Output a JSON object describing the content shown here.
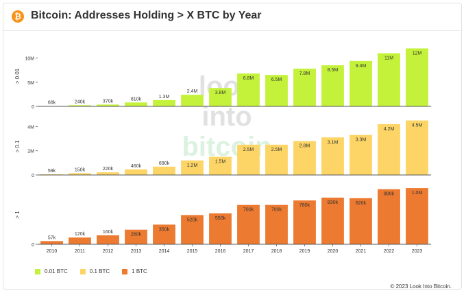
{
  "header": {
    "title": "Bitcoin: Addresses Holding > X BTC by Year",
    "logo_icon": "bitcoin-logo-icon",
    "logo_glyph": "₿"
  },
  "watermark": [
    "look",
    "into",
    "bitcoin"
  ],
  "copyright": "© 2023 Look Into Bitcoin.",
  "colors": {
    "series_001": "#c4f23a",
    "series_01": "#fdd566",
    "series_1": "#ec7a30",
    "grid": "#ececec",
    "axis": "#555555"
  },
  "chart_data": {
    "type": "bar",
    "title": "Bitcoin: Addresses Holding > X BTC by Year",
    "categories": [
      "2010",
      "2011",
      "2012",
      "2013",
      "2014",
      "2015",
      "2016",
      "2017",
      "2018",
      "2019",
      "2020",
      "2021",
      "2022",
      "2023"
    ],
    "panels": [
      {
        "ylabel": "> 0.01",
        "ylim": [
          0,
          12500000
        ],
        "yticks": [
          0,
          5000000,
          10000000
        ],
        "ytick_labels": [
          "0",
          "5M",
          "10M"
        ],
        "series": [
          {
            "name": "0.01 BTC",
            "values": [
              66000,
              240000,
              370000,
              810000,
              1300000,
              2400000,
              3800000,
              6800000,
              6500000,
              7800000,
              8500000,
              9400000,
              11000000,
              12000000
            ],
            "labels": [
              "66k",
              "240k",
              "370k",
              "810k",
              "1.3M",
              "2.4M",
              "3.8M",
              "6.8M",
              "6.5M",
              "7.8M",
              "8.5M",
              "9.4M",
              "11M",
              "12M"
            ]
          }
        ]
      },
      {
        "ylabel": "> 0.1",
        "ylim": [
          0,
          4700000
        ],
        "yticks": [
          0,
          2000000,
          4000000
        ],
        "ytick_labels": [
          "0",
          "2M",
          "4M"
        ],
        "series": [
          {
            "name": "0.1 BTC",
            "values": [
              59000,
              150000,
              220000,
              460000,
              690000,
              1200000,
              1500000,
              2500000,
              2500000,
              2800000,
              3100000,
              3300000,
              4200000,
              4500000
            ],
            "labels": [
              "59k",
              "150k",
              "220k",
              "460k",
              "690k",
              "1.2M",
              "1.5M",
              "2.5M",
              "2.5M",
              "2.8M",
              "3.1M",
              "3.3M",
              "4.2M",
              "4.5M"
            ]
          }
        ]
      },
      {
        "ylabel": "> 1",
        "ylim": [
          0,
          1050000
        ],
        "yticks": [
          0
        ],
        "ytick_labels": [
          "0"
        ],
        "series": [
          {
            "name": "1 BTC",
            "values": [
              57000,
              120000,
              160000,
              260000,
              350000,
              520000,
              550000,
              700000,
              700000,
              780000,
              830000,
              820000,
              980000,
              1000000
            ],
            "labels": [
              "57k",
              "120k",
              "160k",
              "260k",
              "350k",
              "520k",
              "550k",
              "700k",
              "700k",
              "780k",
              "830k",
              "820k",
              "980k",
              "1.0M"
            ]
          }
        ]
      }
    ],
    "legend": [
      "0.01 BTC",
      "0.1 BTC",
      "1 BTC"
    ],
    "legend_position": "bottom-left",
    "grid": false
  }
}
